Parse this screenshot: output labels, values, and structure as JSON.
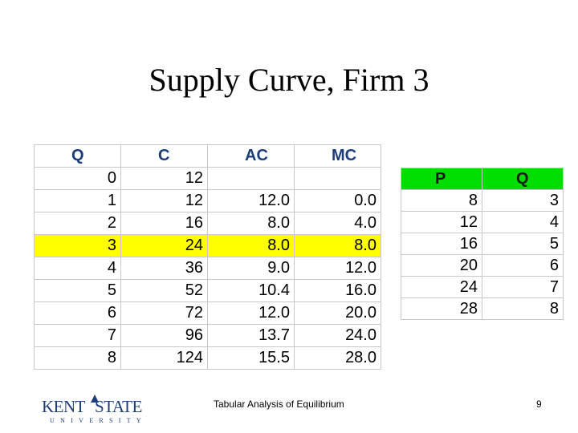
{
  "slide": {
    "title": "Supply Curve, Firm 3",
    "footer": "Tabular Analysis of Equilibrium",
    "page_number": "9",
    "highlight_color": "#ffff00",
    "header_color": "#00dd00"
  },
  "logo": {
    "word1": "KENT",
    "word2": "STATE",
    "sub": "UNIVERSITY"
  },
  "cost_table": {
    "headers": [
      "Q",
      "C",
      "AC",
      "MC"
    ],
    "rows": [
      [
        "0",
        "12",
        "",
        ""
      ],
      [
        "1",
        "12",
        "12.0",
        "0.0"
      ],
      [
        "2",
        "16",
        "8.0",
        "4.0"
      ],
      [
        "3",
        "24",
        "8.0",
        "8.0"
      ],
      [
        "4",
        "36",
        "9.0",
        "12.0"
      ],
      [
        "5",
        "52",
        "10.4",
        "16.0"
      ],
      [
        "6",
        "72",
        "12.0",
        "20.0"
      ],
      [
        "7",
        "96",
        "13.7",
        "24.0"
      ],
      [
        "8",
        "124",
        "15.5",
        "28.0"
      ]
    ],
    "highlighted_row": 3
  },
  "supply_table": {
    "headers": [
      "P",
      "Q"
    ],
    "rows": [
      [
        "8",
        "3"
      ],
      [
        "12",
        "4"
      ],
      [
        "16",
        "5"
      ],
      [
        "20",
        "6"
      ],
      [
        "24",
        "7"
      ],
      [
        "28",
        "8"
      ]
    ]
  }
}
